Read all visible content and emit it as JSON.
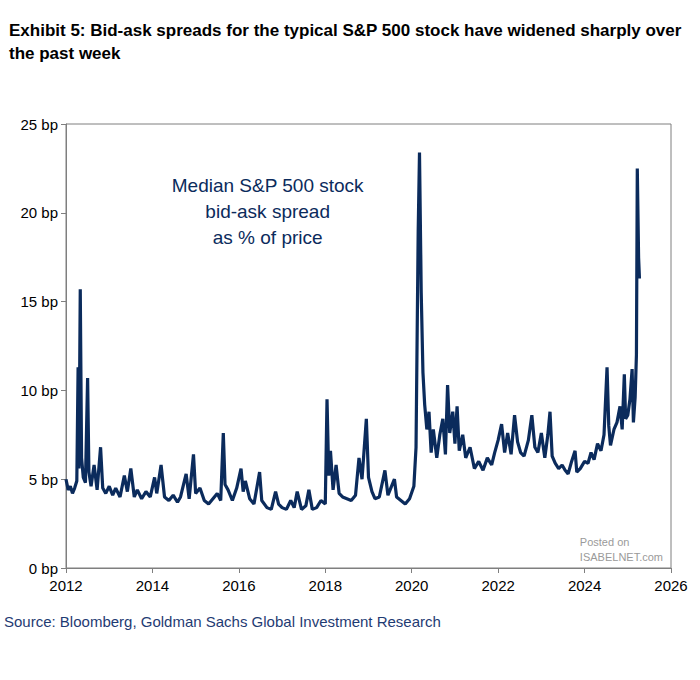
{
  "chart_data": {
    "type": "line",
    "title": "Exhibit 5: Bid-ask spreads for the typical S&P 500 stock have widened sharply over the past week",
    "annotation": "Median S&P 500 stock\nbid-ask spread\nas % of price",
    "source": "Source: Bloomberg, Goldman Sachs Global Investment Research",
    "watermark": "Posted on\nISABELNET.com",
    "color": "#0b2b5c",
    "grid": false,
    "xlim": [
      2012,
      2026
    ],
    "xticks": [
      2012,
      2014,
      2016,
      2018,
      2020,
      2022,
      2024,
      2026
    ],
    "ylim": [
      0,
      25
    ],
    "yticks": [
      {
        "value": 0,
        "label": "0 bp"
      },
      {
        "value": 5,
        "label": "5 bp"
      },
      {
        "value": 10,
        "label": "10 bp"
      },
      {
        "value": 15,
        "label": "15 bp"
      },
      {
        "value": 20,
        "label": "20 bp"
      },
      {
        "value": 25,
        "label": "25 bp"
      }
    ],
    "x": [
      2012.0,
      2012.05,
      2012.1,
      2012.15,
      2012.2,
      2012.25,
      2012.28,
      2012.3,
      2012.33,
      2012.36,
      2012.4,
      2012.45,
      2012.5,
      2012.53,
      2012.58,
      2012.65,
      2012.72,
      2012.8,
      2012.85,
      2012.92,
      2013.0,
      2013.08,
      2013.15,
      2013.25,
      2013.35,
      2013.42,
      2013.5,
      2013.58,
      2013.65,
      2013.75,
      2013.85,
      2013.95,
      2014.05,
      2014.1,
      2014.2,
      2014.28,
      2014.38,
      2014.48,
      2014.58,
      2014.65,
      2014.78,
      2014.85,
      2014.95,
      2015.0,
      2015.1,
      2015.2,
      2015.3,
      2015.4,
      2015.5,
      2015.58,
      2015.64,
      2015.68,
      2015.75,
      2015.85,
      2015.95,
      2016.05,
      2016.1,
      2016.15,
      2016.25,
      2016.35,
      2016.48,
      2016.53,
      2016.65,
      2016.75,
      2016.85,
      2016.92,
      2017.0,
      2017.1,
      2017.2,
      2017.28,
      2017.35,
      2017.45,
      2017.55,
      2017.62,
      2017.7,
      2017.8,
      2017.9,
      2018.0,
      2018.04,
      2018.08,
      2018.12,
      2018.18,
      2018.25,
      2018.32,
      2018.4,
      2018.5,
      2018.6,
      2018.7,
      2018.78,
      2018.85,
      2018.95,
      2019.0,
      2019.08,
      2019.15,
      2019.25,
      2019.38,
      2019.45,
      2019.6,
      2019.65,
      2019.75,
      2019.85,
      2019.95,
      2020.05,
      2020.1,
      2020.15,
      2020.18,
      2020.22,
      2020.26,
      2020.3,
      2020.35,
      2020.4,
      2020.45,
      2020.5,
      2020.58,
      2020.65,
      2020.72,
      2020.78,
      2020.83,
      2020.88,
      2020.95,
      2021.0,
      2021.05,
      2021.1,
      2021.18,
      2021.25,
      2021.35,
      2021.45,
      2021.55,
      2021.65,
      2021.75,
      2021.85,
      2021.92,
      2022.0,
      2022.08,
      2022.15,
      2022.22,
      2022.3,
      2022.38,
      2022.45,
      2022.52,
      2022.6,
      2022.7,
      2022.78,
      2022.85,
      2022.92,
      2023.0,
      2023.08,
      2023.15,
      2023.2,
      2023.25,
      2023.32,
      2023.4,
      2023.48,
      2023.55,
      2023.62,
      2023.7,
      2023.78,
      2023.82,
      2023.9,
      2024.0,
      2024.08,
      2024.15,
      2024.22,
      2024.3,
      2024.38,
      2024.45,
      2024.52,
      2024.56,
      2024.6,
      2024.68,
      2024.75,
      2024.82,
      2024.87,
      2024.92,
      2024.95,
      2025.0,
      2025.05,
      2025.1,
      2025.13,
      2025.17,
      2025.2,
      2025.22,
      2025.25,
      2025.27
    ],
    "values": [
      5.0,
      4.4,
      4.6,
      4.2,
      4.5,
      4.9,
      11.3,
      5.6,
      15.7,
      6.2,
      5.1,
      4.8,
      10.7,
      5.4,
      4.6,
      5.8,
      4.4,
      6.8,
      4.5,
      4.2,
      4.6,
      4.1,
      4.5,
      4.0,
      5.2,
      4.3,
      5.6,
      4.0,
      4.4,
      3.9,
      4.3,
      4.0,
      5.1,
      4.2,
      5.8,
      4.0,
      3.8,
      4.1,
      3.7,
      4.0,
      5.3,
      3.9,
      6.4,
      4.2,
      4.5,
      3.8,
      3.6,
      3.9,
      4.2,
      3.8,
      7.6,
      4.7,
      4.4,
      3.8,
      4.5,
      5.6,
      4.3,
      4.9,
      3.9,
      3.6,
      5.4,
      3.8,
      3.4,
      3.3,
      4.3,
      3.6,
      3.4,
      3.3,
      3.8,
      3.4,
      4.3,
      3.3,
      3.5,
      4.4,
      3.3,
      3.4,
      3.8,
      3.6,
      9.5,
      5.2,
      6.6,
      4.4,
      5.8,
      4.2,
      4.0,
      3.9,
      3.8,
      4.1,
      6.2,
      5.0,
      8.4,
      5.1,
      4.3,
      3.9,
      4.0,
      5.5,
      4.1,
      5.0,
      4.0,
      3.8,
      3.6,
      3.9,
      4.6,
      6.8,
      19.0,
      23.4,
      15.5,
      11.0,
      9.2,
      7.8,
      8.8,
      6.5,
      7.8,
      6.2,
      7.5,
      8.4,
      6.4,
      10.3,
      7.6,
      8.8,
      7.0,
      9.1,
      6.6,
      7.5,
      6.2,
      6.8,
      5.6,
      6.0,
      5.5,
      6.2,
      5.8,
      6.5,
      7.2,
      8.1,
      6.5,
      7.6,
      6.4,
      8.6,
      7.1,
      6.5,
      6.3,
      7.2,
      8.6,
      6.8,
      6.5,
      7.6,
      6.2,
      7.5,
      8.8,
      6.3,
      5.9,
      5.6,
      5.8,
      5.5,
      5.3,
      6.0,
      6.6,
      5.4,
      5.6,
      6.0,
      5.9,
      6.5,
      6.1,
      7.0,
      6.6,
      7.5,
      11.3,
      8.0,
      6.9,
      7.8,
      8.2,
      9.1,
      7.8,
      10.9,
      8.4,
      8.6,
      9.5,
      11.2,
      8.2,
      9.6,
      12.0,
      22.5,
      17.5,
      16.3
    ]
  }
}
